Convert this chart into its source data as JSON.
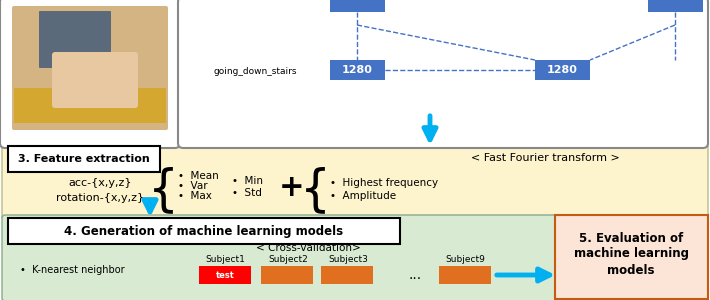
{
  "bg_color": "#ffffff",
  "feature_section_bg": "#fdf3cd",
  "ml_section_bg": "#d9ead3",
  "eval_box_bg": "#fce4d6",
  "eval_box_border": "#c55a11",
  "blue_box_fill": "#4472c4",
  "blue_box_text": "#ffffff",
  "cyan_arrow": "#00b0f0",
  "dashed_line": "#4472c4",
  "text_color": "#000000",
  "going_down_stairs_label": "going_down_stairs",
  "box_value": "1280",
  "fast_fourier_label": "< Fast Fourier transform >",
  "feature_title": "3. Feature extraction",
  "acc_label": "acc-{x,y,z}",
  "rotation_label": "rotation-{x,y,z}",
  "bullet1a": "Mean",
  "bullet1b": "Var",
  "bullet1c": "Max",
  "bullet2a": "Min",
  "bullet2b": "Std",
  "fft_bullet1": "Highest frequency",
  "fft_bullet2": "Amplitude",
  "ml_title": "4. Generation of machine learning models",
  "cross_val_label": "< Cross-validation>",
  "subjects": [
    "Subject1",
    "Subject2",
    "Subject3",
    "Subject9"
  ],
  "knn_label": "K-nearest neighbor",
  "eval_title_line1": "5. Evaluation of",
  "eval_title_line2": "machine learning",
  "eval_title_line3": "models",
  "test_label": "test",
  "bar_red": "#ff0000",
  "bar_orange": "#e07020",
  "top_box_border": "#888888",
  "section_border": "#bbbb88",
  "ml_border": "#88aa88"
}
